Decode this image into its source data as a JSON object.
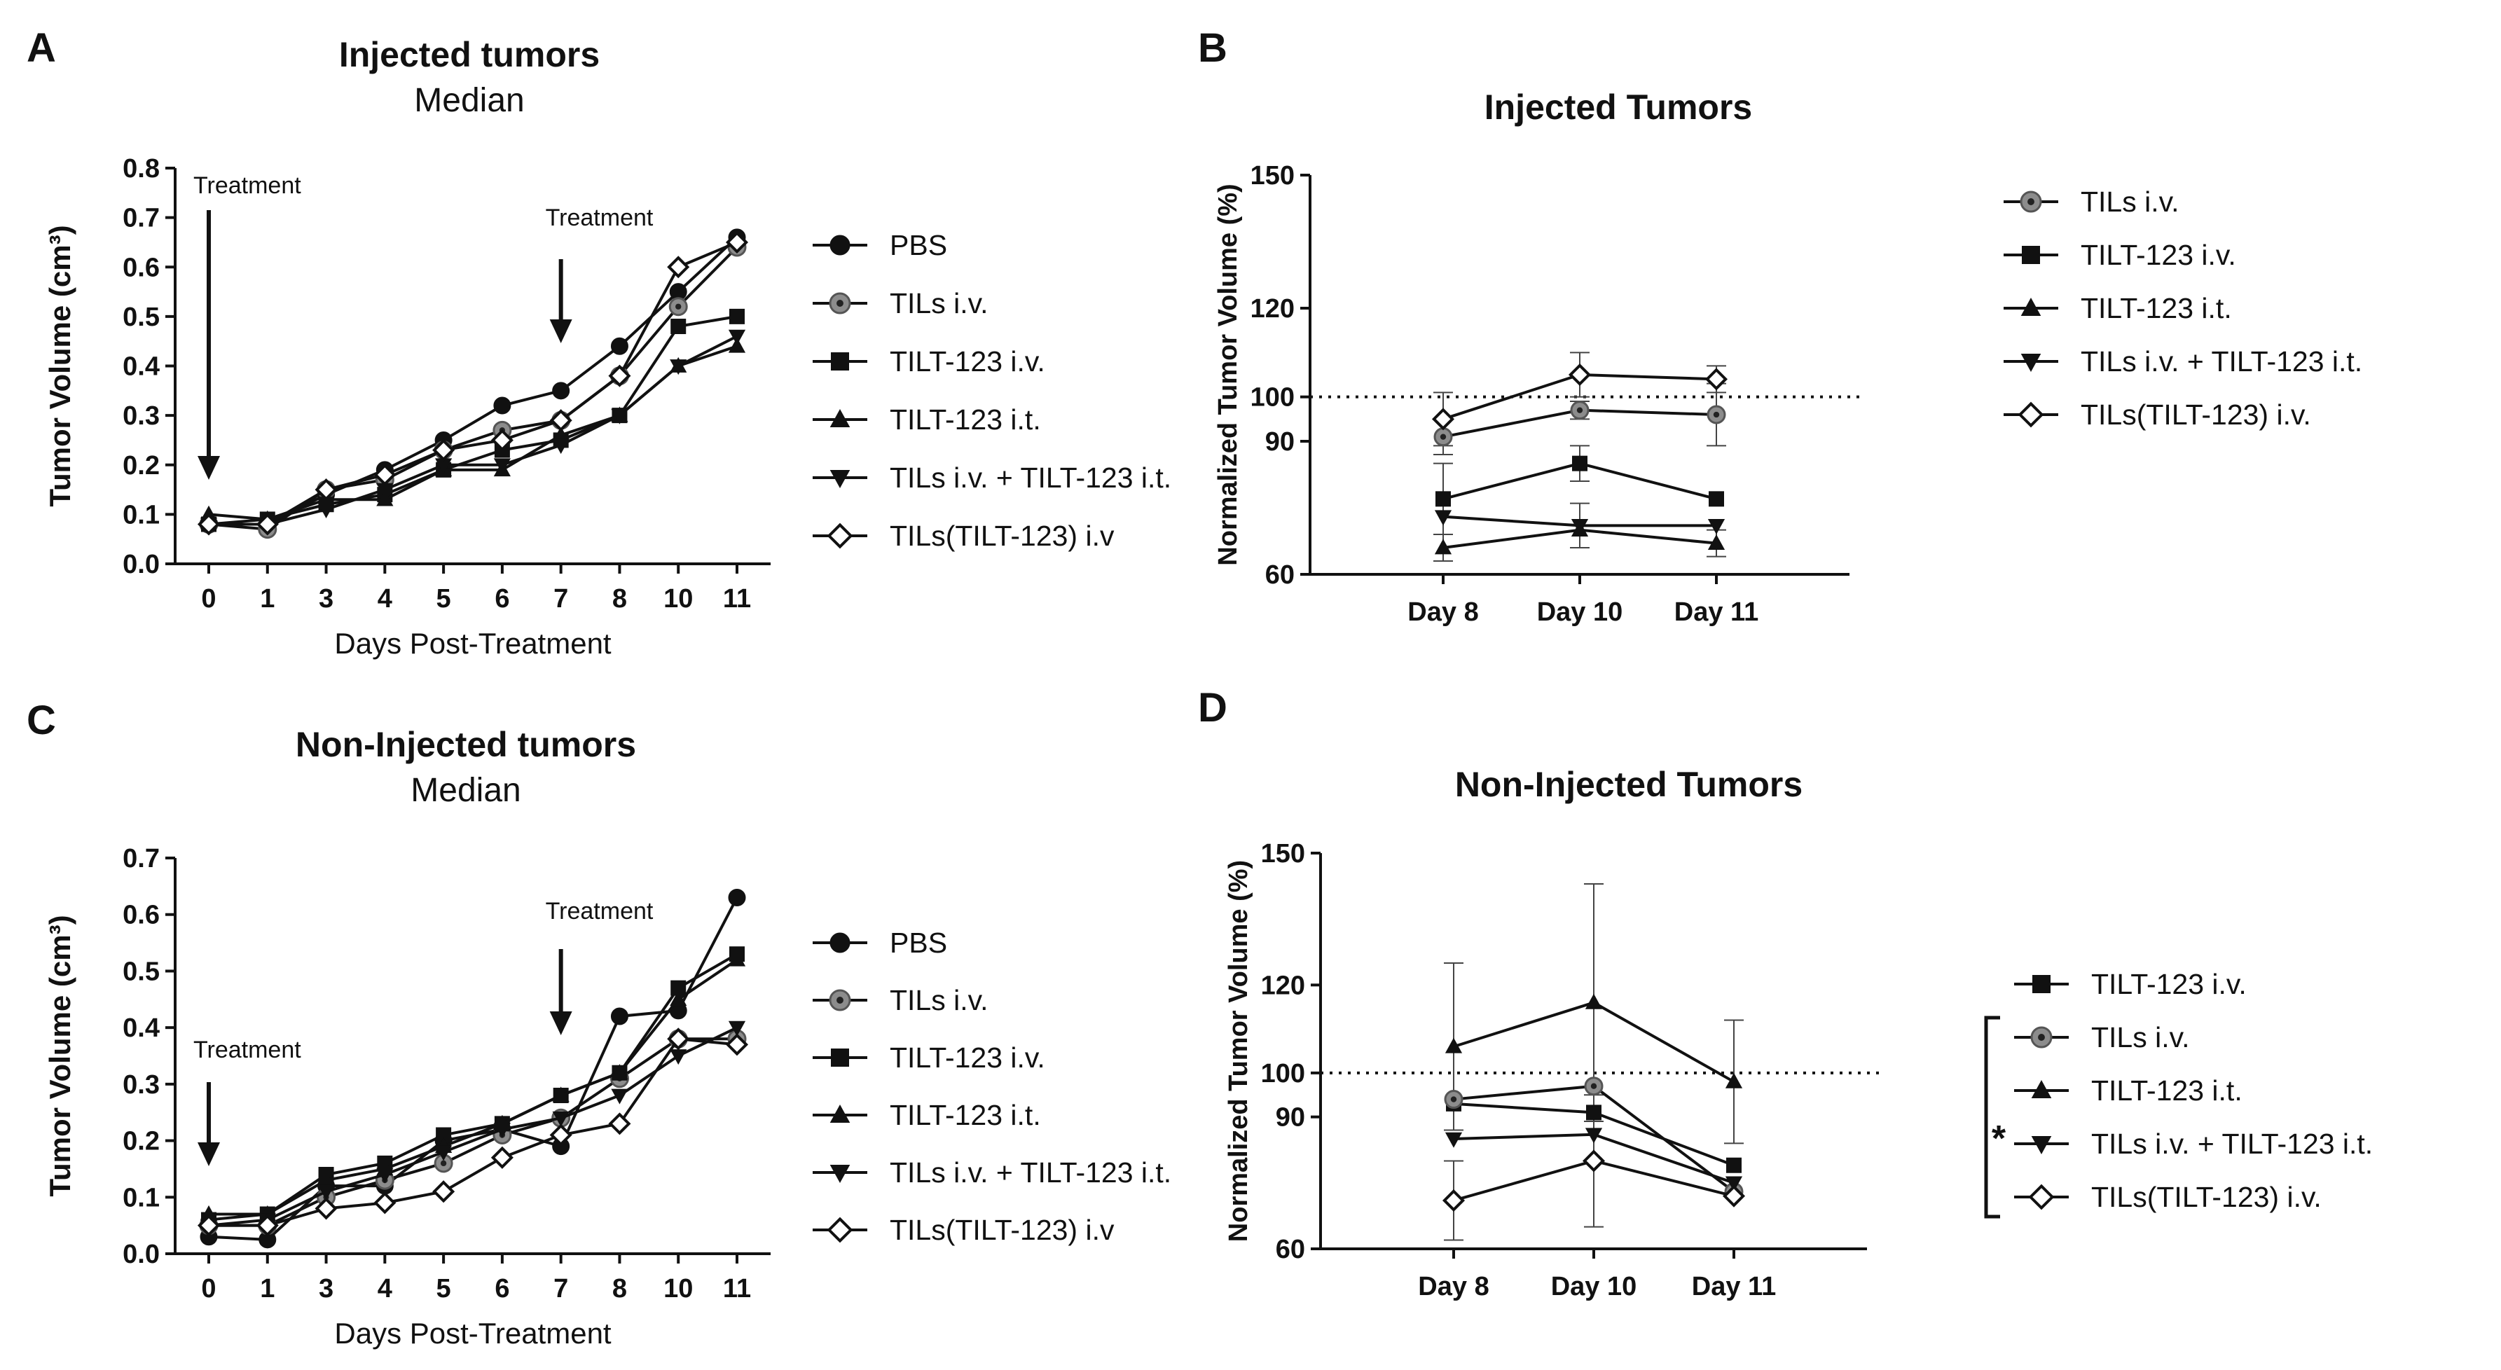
{
  "colors": {
    "ink": "#111111",
    "gray_marker": "#8c8c8c",
    "background": "#ffffff"
  },
  "chart_data": [
    {
      "panel": "A",
      "type": "line",
      "title": "Injected tumors",
      "subtitle": "Median",
      "xlabel": "Days Post-Treatment",
      "ylabel": "Tumor Volume (cm³)",
      "categories": [
        "0",
        "1",
        "3",
        "4",
        "5",
        "6",
        "7",
        "8",
        "10",
        "11"
      ],
      "ylim": [
        0,
        0.8
      ],
      "yticks": [
        "0.0",
        "0.1",
        "0.2",
        "0.3",
        "0.4",
        "0.5",
        "0.6",
        "0.7",
        "0.8"
      ],
      "annotations": [
        {
          "text": "Treatment",
          "category": "0"
        },
        {
          "text": "Treatment",
          "category": "7"
        }
      ],
      "legend_position": "right",
      "series": [
        {
          "name": "PBS",
          "marker": "circle",
          "values": [
            0.08,
            0.08,
            0.14,
            0.19,
            0.25,
            0.32,
            0.35,
            0.44,
            0.55,
            0.66
          ]
        },
        {
          "name": "TILs i.v.",
          "marker": "gray-circle",
          "values": [
            0.08,
            0.07,
            0.15,
            0.17,
            0.23,
            0.27,
            0.29,
            0.38,
            0.52,
            0.64
          ]
        },
        {
          "name": "TILT-123 i.v.",
          "marker": "square",
          "values": [
            0.08,
            0.09,
            0.12,
            0.14,
            0.19,
            0.23,
            0.25,
            0.3,
            0.48,
            0.5
          ]
        },
        {
          "name": "TILT-123 i.t.",
          "marker": "triangle-up",
          "values": [
            0.1,
            0.09,
            0.13,
            0.13,
            0.19,
            0.19,
            0.26,
            0.3,
            0.4,
            0.44
          ]
        },
        {
          "name": "TILs i.v. + TILT-123 i.t.",
          "marker": "triangle-down",
          "values": [
            0.08,
            0.08,
            0.11,
            0.15,
            0.2,
            0.2,
            0.24,
            0.3,
            0.4,
            0.46
          ]
        },
        {
          "name": "TILs(TILT-123) i.v",
          "marker": "diamond-open",
          "values": [
            0.08,
            0.08,
            0.15,
            0.18,
            0.23,
            0.25,
            0.29,
            0.38,
            0.6,
            0.65
          ]
        }
      ]
    },
    {
      "panel": "B",
      "type": "line",
      "title": "Injected Tumors",
      "xlabel": "",
      "ylabel": "Normalized Tumor Volume (%)",
      "categories": [
        "Day 8",
        "Day 10",
        "Day 11"
      ],
      "ylim": [
        60,
        150
      ],
      "yticks": [
        "60",
        "90",
        "100",
        "120",
        "150"
      ],
      "reference_line": 100,
      "legend_position": "right",
      "series": [
        {
          "name": "TILs i.v.",
          "marker": "gray-circle",
          "values": [
            91,
            97,
            96
          ],
          "errors": [
            4,
            2,
            7
          ]
        },
        {
          "name": "TILT-123 i.v.",
          "marker": "square",
          "values": [
            77,
            85,
            77
          ],
          "errors": [
            8,
            4,
            0
          ]
        },
        {
          "name": "TILT-123 i.t.",
          "marker": "triangle-up",
          "values": [
            66,
            70,
            67
          ],
          "errors": [
            3,
            0,
            3
          ]
        },
        {
          "name": "TILs i.v. + TILT-123 i.t.",
          "marker": "triangle-down",
          "values": [
            73,
            71,
            71
          ],
          "errors": [
            0,
            5,
            0
          ]
        },
        {
          "name": "TILs(TILT-123) i.v.",
          "marker": "diamond-open",
          "values": [
            95,
            105,
            104
          ],
          "errors": [
            6,
            5,
            3
          ]
        }
      ]
    },
    {
      "panel": "C",
      "type": "line",
      "title": "Non-Injected tumors",
      "subtitle": "Median",
      "xlabel": "Days Post-Treatment",
      "ylabel": "Tumor Volume (cm³)",
      "categories": [
        "0",
        "1",
        "3",
        "4",
        "5",
        "6",
        "7",
        "8",
        "10",
        "11"
      ],
      "ylim": [
        0,
        0.7
      ],
      "yticks": [
        "0.0",
        "0.1",
        "0.2",
        "0.3",
        "0.4",
        "0.5",
        "0.6",
        "0.7"
      ],
      "annotations": [
        {
          "text": "Treatment",
          "category": "0"
        },
        {
          "text": "Treatment",
          "category": "7"
        }
      ],
      "legend_position": "right",
      "series": [
        {
          "name": "PBS",
          "marker": "circle",
          "values": [
            0.03,
            0.025,
            0.12,
            0.12,
            0.2,
            0.22,
            0.19,
            0.42,
            0.43,
            0.63
          ]
        },
        {
          "name": "TILs i.v.",
          "marker": "gray-circle",
          "values": [
            0.05,
            0.05,
            0.1,
            0.13,
            0.16,
            0.21,
            0.24,
            0.31,
            0.38,
            0.38
          ]
        },
        {
          "name": "TILT-123 i.v.",
          "marker": "square",
          "values": [
            0.06,
            0.07,
            0.14,
            0.16,
            0.21,
            0.23,
            0.28,
            0.32,
            0.47,
            0.53
          ]
        },
        {
          "name": "TILT-123 i.t.",
          "marker": "triangle-up",
          "values": [
            0.07,
            0.07,
            0.13,
            0.15,
            0.19,
            0.23,
            0.28,
            0.32,
            0.45,
            0.52
          ]
        },
        {
          "name": "TILs i.v. + TILT-123 i.t.",
          "marker": "triangle-down",
          "values": [
            0.05,
            0.06,
            0.11,
            0.14,
            0.18,
            0.22,
            0.24,
            0.28,
            0.35,
            0.4
          ]
        },
        {
          "name": "TILs(TILT-123) i.v",
          "marker": "diamond-open",
          "values": [
            0.05,
            0.05,
            0.08,
            0.09,
            0.11,
            0.17,
            0.21,
            0.23,
            0.38,
            0.37
          ]
        }
      ]
    },
    {
      "panel": "D",
      "type": "line",
      "title": "Non-Injected Tumors",
      "xlabel": "",
      "ylabel": "Normalized Tumor Volume (%)",
      "categories": [
        "Day 8",
        "Day 10",
        "Day 11"
      ],
      "ylim": [
        60,
        150
      ],
      "yticks": [
        "60",
        "90",
        "100",
        "120",
        "150"
      ],
      "reference_line": 100,
      "legend_position": "right",
      "significance": "*",
      "series": [
        {
          "name": "TILT-123 i.v.",
          "marker": "square",
          "values": [
            93,
            91,
            79
          ],
          "errors": [
            0,
            0,
            0
          ]
        },
        {
          "name": "TILs i.v.",
          "marker": "gray-circle",
          "values": [
            94,
            97,
            73
          ],
          "errors": [
            0,
            0,
            0
          ]
        },
        {
          "name": "TILT-123 i.t.",
          "marker": "triangle-up",
          "values": [
            106,
            116,
            98
          ],
          "errors": [
            19,
            27,
            14
          ]
        },
        {
          "name": "TILs i.v. + TILT-123 i.t.",
          "marker": "triangle-down",
          "values": [
            85,
            86,
            75
          ],
          "errors": [
            0,
            0,
            0
          ]
        },
        {
          "name": "TILs(TILT-123) i.v.",
          "marker": "diamond-open",
          "values": [
            71,
            80,
            72
          ],
          "errors": [
            9,
            15,
            0
          ]
        }
      ]
    }
  ]
}
